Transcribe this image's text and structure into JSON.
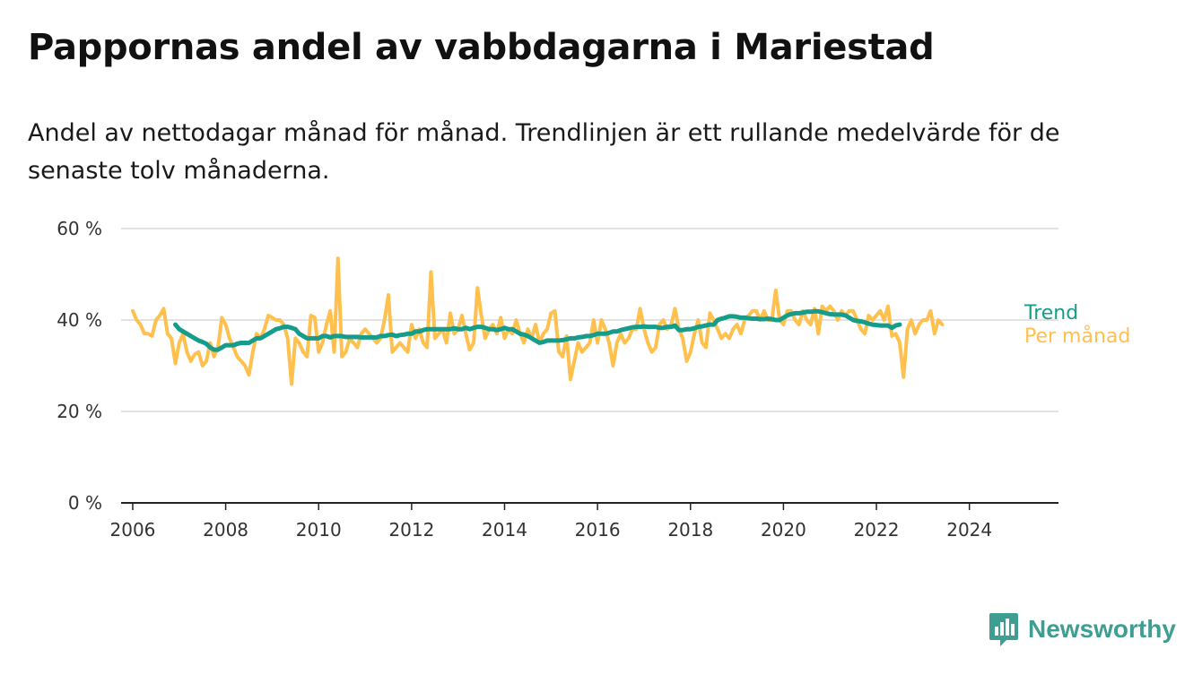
{
  "header": {
    "title": "Pappornas andel av vabbdagarna i Mariestad",
    "subtitle": "Andel av nettodagar månad för månad. Trendlinjen är ett rullande medelvärde för de senaste tolv månaderna."
  },
  "brand": {
    "name": "Newsworthy",
    "icon": "newsworthy-logo-icon",
    "color": "#3d9e91"
  },
  "chart_data": {
    "type": "line",
    "title": "Pappornas andel av vabbdagarna i Mariestad",
    "subtitle": "Andel av nettodagar månad för månad. Trendlinjen är ett rullande medelvärde för de senaste tolv månaderna.",
    "xlabel": "",
    "ylabel": "",
    "x_ticks": [
      "2006",
      "2008",
      "2010",
      "2012",
      "2014",
      "2016",
      "2018",
      "2020",
      "2022",
      "2024"
    ],
    "y_ticks": [
      "0 %",
      "20 %",
      "40 %",
      "60 %"
    ],
    "ylim": [
      0,
      60
    ],
    "xlim": [
      "2005-10",
      "2025-12"
    ],
    "grid": true,
    "legend_position": "right-end-of-lines",
    "series": [
      {
        "name": "Per månad",
        "color": "#ffc04d",
        "start": "2006-01",
        "values": [
          42,
          40,
          39,
          37,
          37,
          36.5,
          40,
          41,
          42.5,
          37,
          36,
          30.5,
          35,
          37,
          33,
          31,
          32.5,
          33,
          30,
          31,
          35,
          32,
          34,
          40.5,
          39,
          36,
          34,
          32,
          31,
          30,
          28,
          33,
          37,
          36,
          38,
          41,
          40.5,
          40,
          40,
          39,
          36,
          26,
          36,
          35,
          33,
          32,
          41,
          40.5,
          33,
          35,
          39,
          42,
          33,
          53.5,
          32,
          33,
          36,
          35,
          34,
          37,
          38,
          37,
          36,
          35,
          36,
          40,
          45.5,
          33,
          34,
          35,
          34,
          33,
          39,
          36,
          38,
          35,
          34,
          50.5,
          36,
          37,
          38,
          35,
          41.5,
          37,
          38,
          41,
          37,
          33.5,
          35,
          47,
          41,
          36,
          38,
          39,
          37,
          40.5,
          36,
          38,
          37,
          40,
          37,
          35,
          38,
          36,
          39,
          35,
          37,
          38,
          41.5,
          42,
          33,
          32,
          36.5,
          27,
          31,
          35,
          33,
          34,
          35,
          40,
          35,
          40,
          38,
          35,
          30,
          35,
          37,
          35,
          36,
          38,
          38,
          42.5,
          38,
          35,
          33,
          34,
          39,
          40,
          38,
          39,
          42.5,
          38,
          36,
          31,
          33,
          37,
          40,
          35,
          34,
          41.5,
          40,
          38,
          36,
          37,
          36,
          38,
          39,
          37,
          40,
          41,
          42,
          42,
          40,
          42,
          40,
          40,
          46.5,
          40,
          39,
          42,
          42,
          40,
          39,
          42,
          40,
          39,
          42.5,
          37,
          43,
          42,
          43,
          42,
          40,
          42,
          41,
          42,
          42,
          40,
          38,
          37,
          41,
          40,
          41,
          42,
          40,
          43,
          36.5,
          37,
          35,
          27.5,
          38,
          40,
          37,
          39,
          40,
          40,
          42,
          37,
          40,
          39
        ]
      },
      {
        "name": "Trend",
        "color": "#159c8b",
        "start": "2006-12",
        "values": [
          39,
          38,
          37.5,
          37,
          36.5,
          36,
          35.5,
          35.2,
          34.8,
          34,
          33.5,
          33.5,
          34,
          34.5,
          34.5,
          34.5,
          34.8,
          35,
          35,
          35,
          35.5,
          36,
          36,
          36.5,
          37,
          37.5,
          38,
          38.2,
          38.5,
          38.5,
          38.3,
          38,
          37,
          36.5,
          36,
          36,
          36,
          36,
          36.5,
          36.5,
          36.2,
          36.5,
          36.5,
          36.5,
          36.3,
          36.3,
          36.3,
          36.3,
          36.2,
          36.2,
          36.2,
          36.2,
          36.2,
          36.5,
          36.5,
          36.7,
          36.8,
          36.5,
          36.7,
          36.8,
          37,
          37,
          37.5,
          37.5,
          37.8,
          38,
          38,
          38,
          38,
          38,
          38,
          38,
          38.2,
          38,
          38,
          38.3,
          38,
          38.3,
          38.5,
          38.5,
          38.3,
          38,
          38,
          37.8,
          38,
          38.3,
          38,
          38,
          37.5,
          37,
          36.8,
          36.5,
          36,
          35.5,
          35,
          35.2,
          35.5,
          35.5,
          35.5,
          35.5,
          35.6,
          35.8,
          36,
          36,
          36.2,
          36.3,
          36.5,
          36.5,
          36.7,
          37,
          37,
          37,
          37.2,
          37.5,
          37.5,
          37.8,
          38,
          38.2,
          38.4,
          38.5,
          38.5,
          38.6,
          38.5,
          38.5,
          38.5,
          38.3,
          38.3,
          38.5,
          38.5,
          38.8,
          37.8,
          37.8,
          38,
          38,
          38.2,
          38.5,
          38.6,
          38.8,
          39,
          39,
          40,
          40.3,
          40.5,
          40.8,
          40.8,
          40.7,
          40.5,
          40.5,
          40.4,
          40.3,
          40.3,
          40.2,
          40.2,
          40.3,
          40.2,
          40,
          40,
          40.5,
          41,
          41.3,
          41.5,
          41.5,
          41.6,
          41.8,
          41.8,
          41.9,
          41.9,
          41.7,
          41.5,
          41.3,
          41.2,
          41.2,
          41.2,
          41,
          40.5,
          40,
          39.8,
          39.7,
          39.5,
          39.2,
          39,
          38.9,
          38.8,
          38.8,
          38.8,
          38.3,
          38.8,
          39
        ]
      }
    ]
  }
}
